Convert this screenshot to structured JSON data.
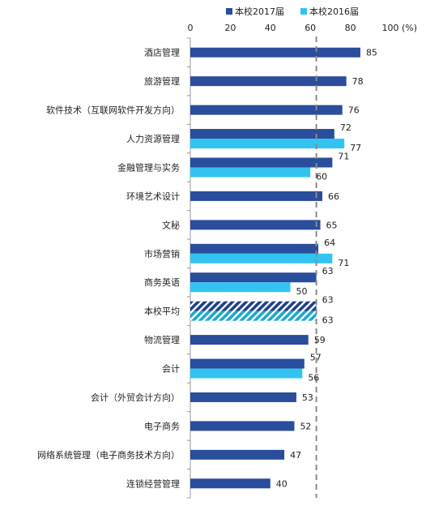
{
  "chart_data": {
    "type": "bar",
    "orientation": "horizontal",
    "x_unit": "(%)",
    "xlim": [
      0,
      100
    ],
    "x_ticks": [
      "0",
      "20",
      "40",
      "60",
      "80",
      "100"
    ],
    "grid": false,
    "reference_line": 63,
    "legend_position": "top-right",
    "categories": [
      "酒店管理",
      "旅游管理",
      "软件技术（互联网软件开发方向）",
      "人力资源管理",
      "金融管理与实务",
      "环境艺术设计",
      "文秘",
      "市场营销",
      "商务英语",
      "本校平均",
      "物流管理",
      "会计",
      "会计（外贸会计方向）",
      "电子商务",
      "网络系统管理（电子商务技术方向）",
      "连锁经营管理"
    ],
    "series": [
      {
        "name": "本校2017届",
        "color": "#2a4d9c",
        "values": [
          85,
          78,
          76,
          72,
          71,
          66,
          65,
          64,
          63,
          63,
          59,
          57,
          53,
          52,
          47,
          40
        ]
      },
      {
        "name": "本校2016届",
        "color": "#33c3f0",
        "values": [
          null,
          null,
          null,
          77,
          60,
          null,
          null,
          71,
          50,
          63,
          null,
          56,
          null,
          null,
          null,
          null
        ]
      }
    ],
    "highlight_category": "本校平均"
  }
}
